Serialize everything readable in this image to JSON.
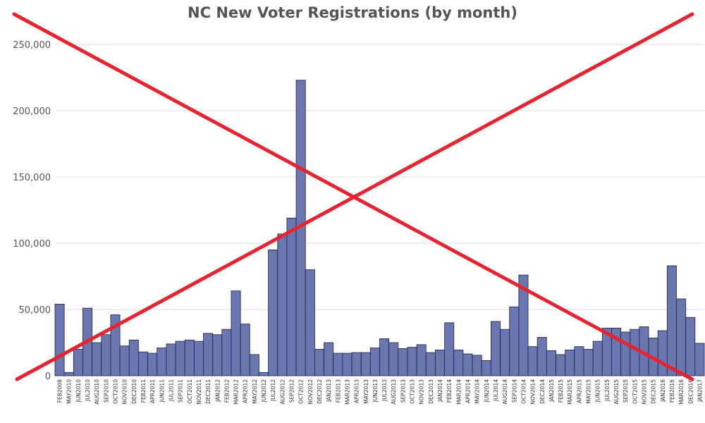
{
  "chart_data": {
    "type": "bar",
    "title": "NC New Voter Registrations (by month)",
    "xlabel": "",
    "ylabel": "",
    "ylim": [
      0,
      250000
    ],
    "y_tick_labels": [
      "0",
      "50,000",
      "100,000",
      "150,000",
      "200,000",
      "250,000"
    ],
    "y_tick_values": [
      0,
      50000,
      100000,
      150000,
      200000,
      250000
    ],
    "grid": true,
    "bar_color": "#6a76b0",
    "bar_edge_color": "#1d2340",
    "overlay_color": "#e8232f",
    "overlay": "red X drawn across the whole chart",
    "categories": [
      "FEB2008",
      "MAY2010",
      "JUN2010",
      "JUL2010",
      "AUG2010",
      "SEP2010",
      "OCT2010",
      "NOV2010",
      "DEC2010",
      "FEB2011",
      "APR2011",
      "JUN2011",
      "JUL2011",
      "SEP2011",
      "OCT2011",
      "NOV2011",
      "DEC2011",
      "JAN2012",
      "FEB2012",
      "MAR2012",
      "APR2012",
      "MAY2012",
      "JUN2012",
      "JUL2012",
      "AUG2012",
      "SEP2012",
      "OCT2012",
      "NOV2012",
      "DEC2012",
      "JAN2013",
      "FEB2013",
      "MAR2013",
      "APR2013",
      "MAY2013",
      "JUN2013",
      "JUL2013",
      "AUG2013",
      "SEP2013",
      "OCT2013",
      "NOV2013",
      "DEC2013",
      "JAN2014",
      "FEB2014",
      "MAR2014",
      "APR2014",
      "MAY2014",
      "JUN2014",
      "JUL2014",
      "AUG2014",
      "SEP2014",
      "OCT2014",
      "NOV2014",
      "DEC2014",
      "JAN2015",
      "FEB2015",
      "MAR2015",
      "APR2015",
      "MAY2015",
      "JUN2015",
      "JUL2015",
      "AUG2015",
      "SEP2015",
      "OCT2015",
      "NOV2015",
      "DEC2015",
      "JAN2016",
      "FEB2016",
      "MAR2016",
      "DEC2016",
      "JAN2017"
    ],
    "values": [
      54000,
      2500,
      20000,
      51000,
      25000,
      31000,
      46000,
      22500,
      27000,
      18000,
      17000,
      21000,
      24000,
      26000,
      27000,
      26000,
      32000,
      31000,
      35000,
      64000,
      39000,
      16000,
      2500,
      95000,
      107000,
      119000,
      223000,
      80000,
      20000,
      25000,
      17000,
      17000,
      17500,
      17500,
      21000,
      28000,
      25000,
      20500,
      21500,
      23500,
      17500,
      19500,
      40000,
      19500,
      16500,
      15500,
      11500,
      41000,
      35000,
      52000,
      76000,
      22000,
      29000,
      19000,
      16000,
      19500,
      22000,
      20000,
      26000,
      36000,
      36000,
      33000,
      35000,
      37000,
      28500,
      34000,
      83000,
      58000,
      44000,
      24500
    ]
  }
}
